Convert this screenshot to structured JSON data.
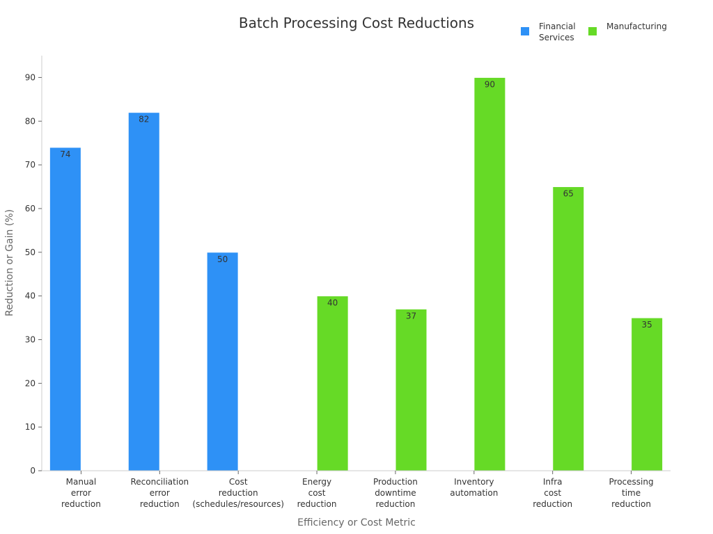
{
  "chart_data": {
    "type": "bar",
    "title": "Batch Processing Cost Reductions",
    "xlabel": "Efficiency or Cost Metric",
    "ylabel": "Reduction or Gain (%)",
    "ylim": [
      0,
      95
    ],
    "yticks": [
      0,
      10,
      20,
      30,
      40,
      50,
      60,
      70,
      80,
      90
    ],
    "grid": false,
    "legend_position": "top-right",
    "categories": [
      [
        "Manual",
        "error",
        "reduction"
      ],
      [
        "Reconciliation",
        "error",
        "reduction"
      ],
      [
        "Cost",
        "reduction",
        "(schedules/resources)"
      ],
      [
        "Energy",
        "cost",
        "reduction"
      ],
      [
        "Production",
        "downtime",
        "reduction"
      ],
      [
        "Inventory",
        "automation"
      ],
      [
        "Infra",
        "cost",
        "reduction"
      ],
      [
        "Processing",
        "time",
        "reduction"
      ]
    ],
    "series": [
      {
        "name": [
          "Financial",
          "Services"
        ],
        "color": "#2e91f6",
        "values": [
          74,
          82,
          50,
          null,
          null,
          null,
          null,
          null
        ]
      },
      {
        "name": [
          "Manufacturing"
        ],
        "color": "#66da26",
        "values": [
          null,
          null,
          null,
          40,
          37,
          90,
          65,
          35
        ]
      }
    ]
  }
}
